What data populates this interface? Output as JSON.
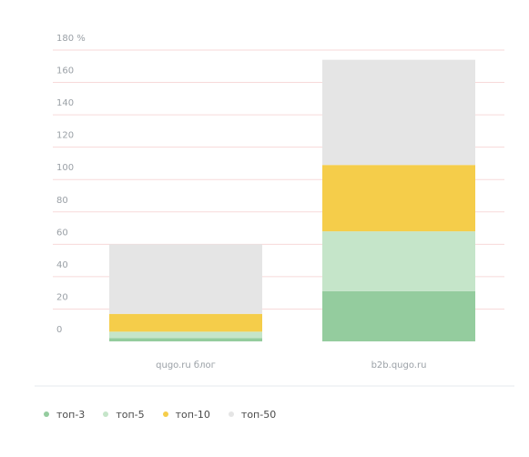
{
  "chart_data": {
    "type": "bar",
    "stacked": true,
    "categories": [
      "qugo.ru блог",
      "b2b.qugo.ru"
    ],
    "series": [
      {
        "name": "топ-3",
        "color": "#94cc9e",
        "values": [
          2,
          31
        ]
      },
      {
        "name": "топ-5",
        "color": "#c5e5c9",
        "values": [
          4,
          37
        ]
      },
      {
        "name": "топ-10",
        "color": "#f5cd4a",
        "values": [
          11,
          41
        ]
      },
      {
        "name": "топ-50",
        "color": "#e5e5e5",
        "values": [
          43,
          65
        ]
      }
    ],
    "y_ticks": [
      {
        "value": 180,
        "label": "180 %"
      },
      {
        "value": 160,
        "label": "160"
      },
      {
        "value": 140,
        "label": "140"
      },
      {
        "value": 120,
        "label": "120"
      },
      {
        "value": 100,
        "label": "100"
      },
      {
        "value": 80,
        "label": "80"
      },
      {
        "value": 60,
        "label": "60"
      },
      {
        "value": 40,
        "label": "40"
      },
      {
        "value": 20,
        "label": "20"
      },
      {
        "value": 0,
        "label": "0"
      }
    ],
    "ylim": [
      0,
      180
    ],
    "grid": true,
    "legend_position": "bottom-left"
  },
  "legend": [
    {
      "label": "топ-3",
      "color": "#94cc9e"
    },
    {
      "label": "топ-5",
      "color": "#c5e5c9"
    },
    {
      "label": "топ-10",
      "color": "#f5cd4a"
    },
    {
      "label": "топ-50",
      "color": "#e5e5e5"
    }
  ],
  "colors": {
    "grid": "#f7dada",
    "axis_text": "#9aa0a6",
    "legend_text": "#4a4a4a"
  }
}
